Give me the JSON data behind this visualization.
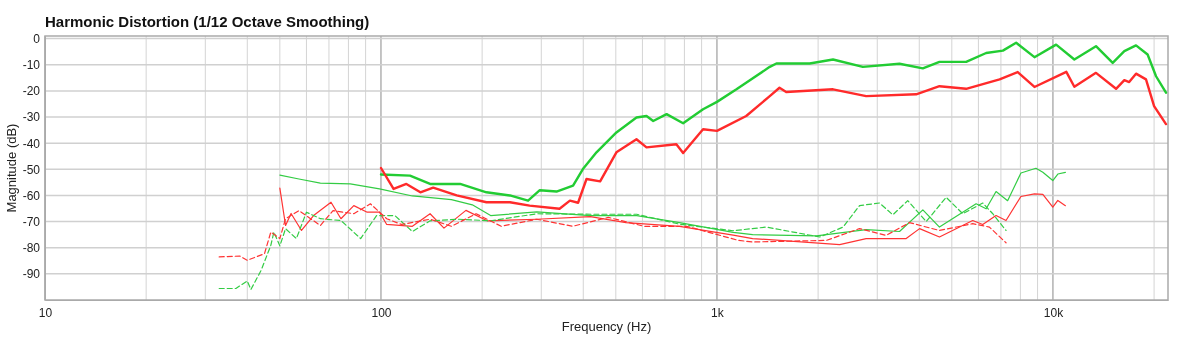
{
  "chart_data": {
    "type": "line",
    "title": "Harmonic Distortion (1/12 Octave Smoothing)",
    "xlabel": "Frequency (Hz)",
    "ylabel": "Magnitude (dB)",
    "log": "x",
    "grid": true,
    "marker": "none",
    "xlim": [
      10,
      22000
    ],
    "xticks": [
      10,
      100,
      {
        "value": 1000,
        "label": "1k"
      },
      {
        "value": 10000,
        "label": "10k"
      }
    ],
    "ylim": [
      -100,
      1
    ],
    "yticks": [
      0,
      -10,
      -20,
      -30,
      -40,
      -50,
      -60,
      -70,
      -80,
      -90
    ],
    "series": [
      {
        "color": "#22cc33",
        "line_style": "solid",
        "x": [
          100,
          122,
          140,
          172,
          206,
          242,
          274,
          297,
          333,
          373,
          399,
          438,
          502,
          576,
          617,
          646,
          708,
          793,
          909,
          1000,
          1143,
          1436,
          1503,
          1888,
          2215,
          2718,
          3494,
          4100,
          4594,
          5517,
          6327,
          7096,
          7770,
          8810,
          10220,
          11580,
          13430,
          15060,
          16310,
          17670,
          19130,
          20270,
          21700
        ],
        "values": [
          -52,
          -52.4,
          -55.6,
          -55.6,
          -58.8,
          -60,
          -62,
          -58,
          -58.5,
          -56.2,
          -49.9,
          -43.5,
          -35.9,
          -30.2,
          -29.6,
          -31.5,
          -28.9,
          -32.4,
          -27,
          -24.2,
          -19.4,
          -10.8,
          -9.5,
          -9.5,
          -8,
          -10.8,
          -9.6,
          -11.4,
          -8.9,
          -8.9,
          -5.5,
          -4.6,
          -1.6,
          -7.1,
          -2.3,
          -8,
          -2.9,
          -9.3,
          -4.8,
          -2.6,
          -6.1,
          -14.4,
          -20.7
        ]
      },
      {
        "color": "#ff2a2a",
        "line_style": "solid",
        "x": [
          100,
          109,
          119,
          131,
          143,
          168,
          206,
          242,
          277,
          340,
          365,
          386,
          409,
          449,
          502,
          576,
          617,
          757,
          793,
          909,
          1000,
          1222,
          1436,
          1535,
          1607,
          2215,
          2780,
          3916,
          4594,
          5517,
          6938,
          7854,
          8810,
          10960,
          11580,
          13430,
          15410,
          16310,
          16860,
          17670,
          18920,
          20000,
          21700
        ],
        "values": [
          -49.5,
          -57.5,
          -55.6,
          -58.8,
          -57,
          -60,
          -62.6,
          -62.6,
          -63.9,
          -65.1,
          -62,
          -62.8,
          -53.7,
          -54.6,
          -43.5,
          -38.5,
          -41.6,
          -40.4,
          -43.8,
          -34.7,
          -35.3,
          -29.6,
          -22,
          -18.8,
          -20.4,
          -19.4,
          -22,
          -21.3,
          -18.2,
          -19.2,
          -15.6,
          -12.8,
          -18.5,
          -12.7,
          -18.4,
          -13.1,
          -19.2,
          -15.9,
          -16.6,
          -13.4,
          -15.6,
          -25.8,
          -32.7
        ]
      },
      {
        "color": "#33cc44",
        "line_style": "solid",
        "x": [
          50,
          57,
          66,
          81,
          99,
          124,
          162,
          187,
          212,
          291,
          420,
          577,
          774,
          1117,
          1277,
          1977,
          2780,
          3494,
          4100,
          4594,
          5906,
          6327,
          6771,
          7330,
          8030,
          8900,
          9330,
          9990,
          10340,
          10890
        ],
        "values": [
          -52.2,
          -53.7,
          -55.3,
          -55.6,
          -57.5,
          -60.2,
          -61.6,
          -63.6,
          -67.7,
          -66.3,
          -67.7,
          -67.7,
          -70.4,
          -74.1,
          -75,
          -75.5,
          -73.1,
          -73.8,
          -65.5,
          -72.1,
          -63.2,
          -65.1,
          -58.5,
          -62,
          -51.4,
          -49.6,
          -51.1,
          -54.3,
          -51.8,
          -51.2
        ]
      },
      {
        "color": "#ff3333",
        "line_style": "solid",
        "x": [
          50,
          52,
          54,
          58,
          63,
          71,
          76,
          83,
          91,
          99,
          104,
          124,
          140,
          154,
          179,
          207,
          291,
          420,
          536,
          774,
          1117,
          1277,
          2318,
          2780,
          3658,
          4009,
          4594,
          5770,
          6180,
          6771,
          7250,
          8030,
          8810,
          9330,
          9990,
          10340,
          10890
        ],
        "values": [
          -57.2,
          -71.5,
          -66.9,
          -73.4,
          -67.7,
          -62.6,
          -68.9,
          -63.9,
          -66.4,
          -66.4,
          -71.1,
          -71.8,
          -67,
          -72.5,
          -65.7,
          -69.7,
          -69.1,
          -68.1,
          -70.4,
          -71.8,
          -75.2,
          -76.5,
          -78.8,
          -76.5,
          -76.5,
          -72.7,
          -75.9,
          -69.6,
          -71.1,
          -67.7,
          -69.6,
          -60.4,
          -59.4,
          -59.6,
          -64.5,
          -61.9,
          -63.9
        ]
      },
      {
        "color": "#33cc44",
        "line_style": "dashed",
        "x": [
          33,
          37,
          40,
          41,
          44,
          47,
          48,
          50,
          52,
          56,
          60,
          66,
          76,
          87,
          97,
          110,
          124,
          140,
          170,
          212,
          291,
          420,
          577,
          774,
          1117,
          1403,
          2023,
          2373,
          2656,
          3046,
          3337,
          3697,
          4196,
          4810,
          5390,
          6180,
          6620,
          7250
        ],
        "values": [
          -95.6,
          -95.6,
          -92.7,
          -96,
          -88.6,
          -79.1,
          -74,
          -79.3,
          -72.7,
          -76.5,
          -66.4,
          -68.9,
          -69.6,
          -76.5,
          -67.7,
          -67.7,
          -73.8,
          -69.7,
          -69.1,
          -69.7,
          -67,
          -67.2,
          -67.2,
          -71,
          -73.5,
          -72.1,
          -75.9,
          -72.1,
          -63.9,
          -62.9,
          -67.4,
          -62,
          -70,
          -60.7,
          -67,
          -62.9,
          -67,
          -73.4
        ]
      },
      {
        "color": "#ff3333",
        "line_style": "dashed",
        "x": [
          33,
          38,
          40,
          45,
          47,
          50,
          52,
          57,
          66,
          72,
          83,
          93,
          104,
          115,
          140,
          162,
          192,
          228,
          291,
          372,
          475,
          607,
          813,
          1159,
          1277,
          2116,
          2656,
          3186,
          3741,
          4594,
          5770,
          6470,
          7250
        ],
        "values": [
          -83.5,
          -83.2,
          -84.8,
          -82.3,
          -74,
          -76.5,
          -68.9,
          -65.8,
          -71.5,
          -65.8,
          -67,
          -63.2,
          -68.9,
          -71.1,
          -69.1,
          -71.8,
          -67,
          -71.8,
          -69.1,
          -71.8,
          -68.4,
          -71.8,
          -71.8,
          -77.2,
          -77.8,
          -77.2,
          -72.7,
          -75.3,
          -70.4,
          -73.4,
          -70.8,
          -72.1,
          -78.1
        ]
      }
    ]
  }
}
